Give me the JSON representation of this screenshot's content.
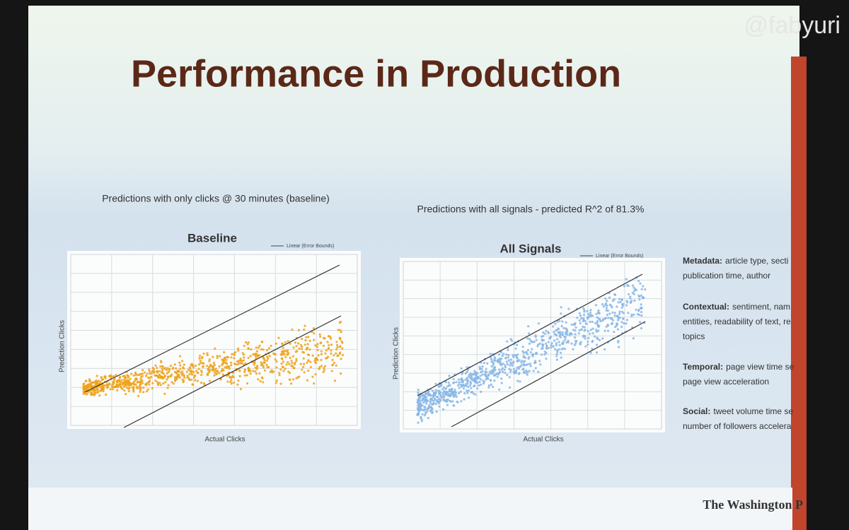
{
  "watermark": "@fabyuri",
  "title": "Performance in Production",
  "charts": [
    {
      "caption": "Predictions with only clicks @ 30 minutes (baseline)",
      "title": "Baseline",
      "legend": "Linear (Error Bounds)",
      "y_label": "Prediction Clicks",
      "x_label": "Actual Clicks"
    },
    {
      "caption": "Predictions with all signals - predicted R^2 of 81.3%",
      "title": "All Signals",
      "legend": "Linear (Error Bounds)",
      "y_label": "Prediction Clicks",
      "x_label": "Actual Clicks"
    }
  ],
  "sidebar": [
    {
      "label": "Metadata:",
      "lines": [
        "article type, secti",
        "publication time, author"
      ]
    },
    {
      "label": "Contextual:",
      "lines": [
        "sentiment, nam",
        "entities, readability of text, re",
        "topics"
      ]
    },
    {
      "label": "Temporal:",
      "lines": [
        "page view time se",
        "page view acceleration"
      ]
    },
    {
      "label": "Social:",
      "lines": [
        "tweet volume time se",
        "number of followers accelera"
      ]
    }
  ],
  "logo": "The Washington P"
}
